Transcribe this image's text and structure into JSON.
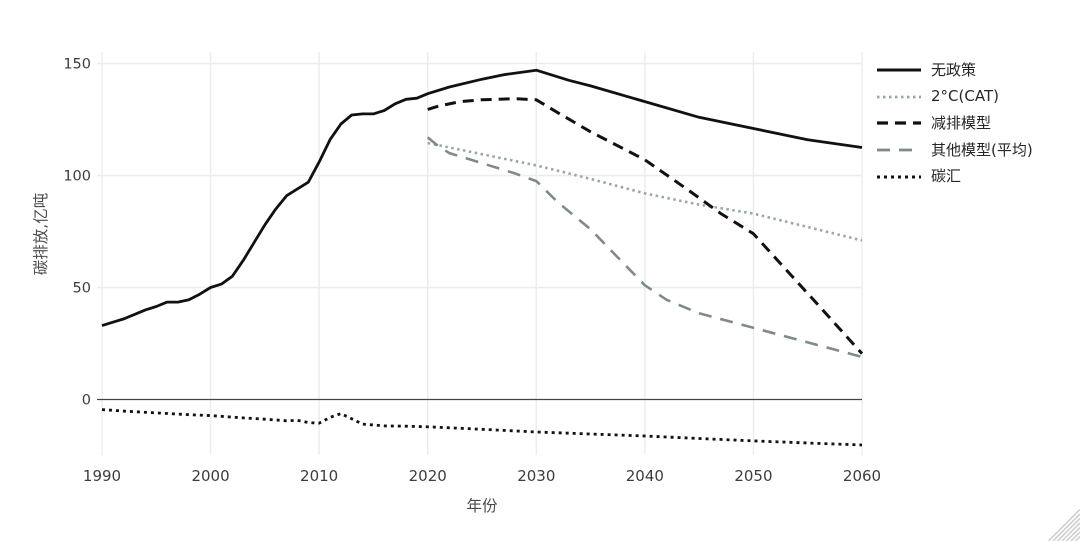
{
  "chart_data": {
    "type": "line",
    "title": "",
    "xlabel": "年份",
    "ylabel": "碳排放,亿吨",
    "x_ticks": [
      1990,
      2000,
      2010,
      2020,
      2030,
      2040,
      2050,
      2060
    ],
    "y_ticks": [
      0,
      50,
      100,
      150
    ],
    "xlim": [
      1990,
      2060
    ],
    "ylim": [
      -25,
      157
    ],
    "grid": true,
    "zero_line": true,
    "legend_position": "right",
    "series": [
      {
        "name": "无政策",
        "color": "#111111",
        "line_style": "solid",
        "points": [
          [
            1990,
            33
          ],
          [
            1991,
            34.5
          ],
          [
            1992,
            36
          ],
          [
            1993,
            38
          ],
          [
            1994,
            40
          ],
          [
            1995,
            41.5
          ],
          [
            1996,
            43.5
          ],
          [
            1997,
            43.5
          ],
          [
            1998,
            44.5
          ],
          [
            1999,
            47
          ],
          [
            2000,
            50
          ],
          [
            2001,
            51.5
          ],
          [
            2002,
            55
          ],
          [
            2003,
            62
          ],
          [
            2004,
            70
          ],
          [
            2005,
            78
          ],
          [
            2006,
            85
          ],
          [
            2007,
            91
          ],
          [
            2008,
            94
          ],
          [
            2009,
            97
          ],
          [
            2010,
            106
          ],
          [
            2011,
            116
          ],
          [
            2012,
            123
          ],
          [
            2013,
            127
          ],
          [
            2014,
            127.5
          ],
          [
            2015,
            127.5
          ],
          [
            2016,
            129
          ],
          [
            2017,
            132
          ],
          [
            2018,
            134
          ],
          [
            2019,
            134.5
          ],
          [
            2020,
            136.5
          ],
          [
            2022,
            139.5
          ],
          [
            2025,
            143
          ],
          [
            2027,
            145
          ],
          [
            2030,
            147
          ],
          [
            2033,
            142.5
          ],
          [
            2035,
            140
          ],
          [
            2040,
            133
          ],
          [
            2045,
            126
          ],
          [
            2050,
            121
          ],
          [
            2055,
            116
          ],
          [
            2060,
            112.5
          ]
        ]
      },
      {
        "name": "2°C(CAT)",
        "color": "#9aa7a7",
        "line_style": "dotted",
        "points": [
          [
            2020,
            114.5
          ],
          [
            2025,
            109.5
          ],
          [
            2030,
            104.5
          ],
          [
            2035,
            98.5
          ],
          [
            2040,
            92
          ],
          [
            2045,
            87
          ],
          [
            2050,
            83
          ],
          [
            2055,
            77
          ],
          [
            2060,
            71
          ]
        ]
      },
      {
        "name": "减排模型",
        "color": "#111111",
        "line_style": "dashed",
        "points": [
          [
            2020,
            129.5
          ],
          [
            2021,
            131
          ],
          [
            2023,
            133
          ],
          [
            2025,
            133.8
          ],
          [
            2028,
            134.3
          ],
          [
            2030,
            133.8
          ],
          [
            2032,
            128
          ],
          [
            2035,
            119.5
          ],
          [
            2040,
            107
          ],
          [
            2044,
            93.5
          ],
          [
            2047,
            83
          ],
          [
            2050,
            74
          ],
          [
            2053,
            58
          ],
          [
            2056,
            42
          ],
          [
            2060,
            20.5
          ]
        ]
      },
      {
        "name": "其他模型(平均)",
        "color": "#7f8b8b",
        "line_style": "long-dashed",
        "points": [
          [
            2020,
            117
          ],
          [
            2021,
            113
          ],
          [
            2022,
            110
          ],
          [
            2025,
            105.5
          ],
          [
            2028,
            101
          ],
          [
            2030,
            97.5
          ],
          [
            2032,
            88
          ],
          [
            2035,
            76
          ],
          [
            2038,
            61
          ],
          [
            2040,
            51
          ],
          [
            2042,
            44.5
          ],
          [
            2045,
            38.5
          ],
          [
            2050,
            32
          ],
          [
            2055,
            25.5
          ],
          [
            2060,
            19
          ]
        ]
      },
      {
        "name": "碳汇",
        "color": "#111111",
        "line_style": "dense-dotted",
        "points": [
          [
            1990,
            -4.5
          ],
          [
            1992,
            -5.2
          ],
          [
            1995,
            -6
          ],
          [
            1998,
            -6.8
          ],
          [
            2000,
            -7.2
          ],
          [
            2003,
            -8.2
          ],
          [
            2005,
            -8.8
          ],
          [
            2007,
            -9.5
          ],
          [
            2008,
            -9.3
          ],
          [
            2009,
            -10.3
          ],
          [
            2010,
            -10.6
          ],
          [
            2011,
            -8
          ],
          [
            2012,
            -6.3
          ],
          [
            2013,
            -8.6
          ],
          [
            2014,
            -11
          ],
          [
            2016,
            -11.8
          ],
          [
            2018,
            -11.9
          ],
          [
            2020,
            -12.2
          ],
          [
            2025,
            -13.3
          ],
          [
            2030,
            -14.5
          ],
          [
            2035,
            -15.4
          ],
          [
            2040,
            -16.3
          ],
          [
            2045,
            -17.4
          ],
          [
            2050,
            -18.5
          ],
          [
            2055,
            -19.4
          ],
          [
            2060,
            -20.3
          ]
        ]
      }
    ]
  },
  "colors": {
    "background": "#ffffff",
    "gridline": "#ececec",
    "zero_line": "#444444",
    "tick_text": "#3d3d3d",
    "axis_title_text": "#4a4a4a",
    "legend_text": "#262626",
    "resize_grip": "#d0d0d0"
  },
  "icons": {
    "resize_grip": "resize-grip"
  }
}
